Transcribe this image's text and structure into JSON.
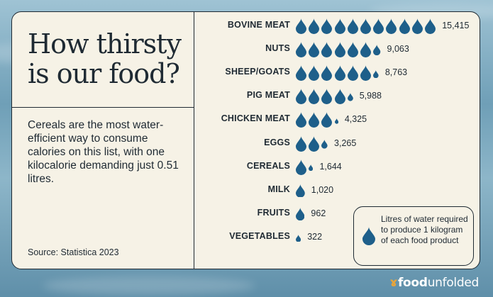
{
  "title": "How thirsty is our food?",
  "description": "Cereals are the most water-efficient way to consume calories on this list, with one kilocalorie demanding just 0.51 litres.",
  "source": "Source: Statistica 2023",
  "legend": "Litres of water required to produce 1 kilogram of each food product",
  "brand": {
    "prefix": "food",
    "suffix": "unfolded"
  },
  "colors": {
    "drop": "#1e5f8a",
    "ink": "#1f2a33",
    "card": "#f6f2e6"
  },
  "chart_data": {
    "type": "bar",
    "title": "How thirsty is our food?",
    "unit": "Litres of water required to produce 1 kilogram of each food product",
    "drop_unit": 1400,
    "categories": [
      "BOVINE MEAT",
      "NUTS",
      "SHEEP/GOATS",
      "PIG MEAT",
      "CHICKEN MEAT",
      "EGGS",
      "CEREALS",
      "MILK",
      "FRUITS",
      "VEGETABLES"
    ],
    "values": [
      15415,
      9063,
      8763,
      5988,
      4325,
      3265,
      1644,
      1020,
      962,
      322
    ],
    "labels": [
      "15,415",
      "9,063",
      "8,763",
      "5,988",
      "4,325",
      "3,265",
      "1,644",
      "1,020",
      "962",
      "322"
    ]
  }
}
